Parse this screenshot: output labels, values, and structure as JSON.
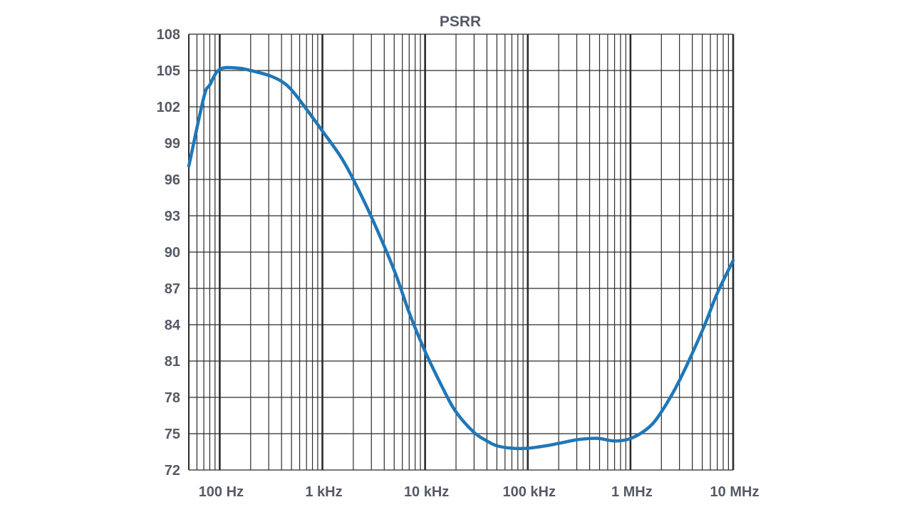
{
  "chart_data": {
    "type": "line",
    "title": "PSRR",
    "xlabel": "",
    "ylabel": "",
    "xscale": "log",
    "xlim": [
      50,
      10000000
    ],
    "ylim": [
      72,
      108
    ],
    "grid": true,
    "legend": "none",
    "colors": {
      "line": "#1f77b8",
      "grid": "#2b2b2b",
      "text": "#555a66"
    },
    "yticks": [
      108,
      105,
      102,
      99,
      96,
      93,
      90,
      87,
      84,
      81,
      78,
      75,
      72
    ],
    "xticks": [
      {
        "value": 100,
        "label": "100 Hz"
      },
      {
        "value": 1000,
        "label": "1 kHz"
      },
      {
        "value": 10000,
        "label": "10 kHz"
      },
      {
        "value": 100000,
        "label": "100 kHz"
      },
      {
        "value": 1000000,
        "label": "1 MHz"
      },
      {
        "value": 10000000,
        "label": "10 MHz"
      }
    ],
    "series": [
      {
        "x": [
          50,
          70,
          80,
          100,
          150,
          200,
          300,
          400,
          500,
          700,
          1000,
          1500,
          2000,
          3000,
          5000,
          7000,
          10000,
          15000,
          20000,
          30000,
          40000,
          50000,
          70000,
          100000,
          150000,
          200000,
          300000,
          400000,
          500000,
          700000,
          1000000,
          1500000,
          2000000,
          3000000,
          5000000,
          7000000,
          10000000
        ],
        "values": [
          97.1,
          102.8,
          103.8,
          105.1,
          105.2,
          105.0,
          104.6,
          104.1,
          103.4,
          101.8,
          100.0,
          97.9,
          96.0,
          92.9,
          88.5,
          85.0,
          81.8,
          78.7,
          76.8,
          75.1,
          74.4,
          74.0,
          73.8,
          73.8,
          74.0,
          74.2,
          74.5,
          74.6,
          74.6,
          74.4,
          74.6,
          75.5,
          76.8,
          79.4,
          83.5,
          86.6,
          89.3
        ]
      }
    ]
  }
}
